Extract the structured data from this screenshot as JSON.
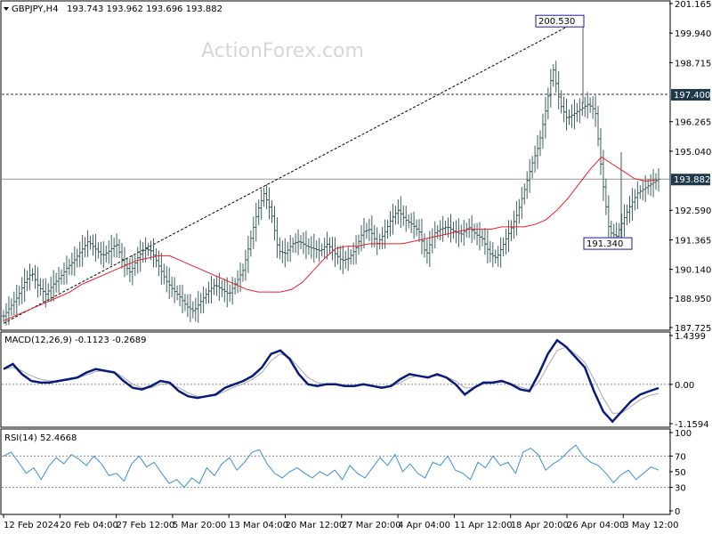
{
  "header": {
    "symbol_label": "GBPJPY,H4",
    "ohlc_label": "193.743 193.962 193.696 193.882"
  },
  "watermark": "ActionForex.com",
  "colors": {
    "background": "#ffffff",
    "price_bars": "#3d5f5f",
    "moving_average": "#e8202a",
    "macd_line": "#0a1a7a",
    "macd_signal": "#a8a8a8",
    "rsi_line": "#3a8fd6",
    "grid_dotted": "#888888",
    "current_price_tag": "#1f3a4a",
    "level_tag_text": "#ffffff",
    "callout_border": "#1a1aa0"
  },
  "chart_data": [
    {
      "type": "line",
      "panel": "price",
      "y_ticks": [
        "201.165",
        "199.940",
        "198.715",
        "197.400",
        "196.265",
        "195.040",
        "193.882",
        "192.590",
        "191.365",
        "190.140",
        "188.950",
        "187.725"
      ],
      "ylim": [
        187.725,
        201.165
      ],
      "x_ticks": [
        "12 Feb 2024",
        "20 Feb 04:00",
        "27 Feb 12:00",
        "5 Mar 20:00",
        "13 Mar 04:00",
        "20 Mar 12:00",
        "27 Mar 20:00",
        "4 Apr 04:00",
        "11 Apr 12:00",
        "18 Apr 20:00",
        "26 Apr 04:00",
        "3 May 12:00"
      ],
      "series": [
        {
          "values": [
            188.2,
            188.6,
            189.0,
            189.6,
            190.0,
            189.4,
            189.1,
            189.5,
            189.8,
            190.2,
            190.5,
            190.9,
            191.3,
            191.0,
            190.7,
            190.9,
            191.2,
            190.4,
            190.0,
            190.6,
            191.0,
            190.9,
            190.3,
            189.7,
            189.3,
            189.0,
            188.6,
            188.4,
            188.8,
            189.2,
            189.5,
            189.3,
            189.1,
            189.6,
            190.1,
            191.3,
            192.5,
            193.3,
            192.5,
            190.9,
            190.8,
            191.2,
            191.3,
            191.1,
            191.0,
            190.9,
            191.2,
            190.8,
            190.5,
            190.6,
            191.0,
            191.7,
            191.8,
            191.2,
            191.6,
            192.2,
            192.6,
            192.2,
            192.0,
            191.7,
            190.7,
            191.6,
            191.8,
            191.9,
            191.7,
            191.6,
            191.9,
            191.6,
            191.4,
            190.8,
            190.6,
            191.2,
            191.8,
            192.5,
            193.5,
            194.5,
            195.3,
            196.8,
            198.5,
            197.0,
            196.4,
            196.6,
            196.8,
            197.0,
            196.7,
            193.9,
            191.7,
            191.5,
            192.2,
            192.8,
            193.3,
            193.5,
            193.7,
            193.88
          ]
        },
        {
          "values": [
            188.0,
            188.2,
            188.4,
            188.6,
            188.8,
            189.0,
            189.2,
            189.5,
            189.7,
            189.9,
            190.1,
            190.3,
            190.5,
            190.6,
            190.7,
            190.7,
            190.5,
            190.3,
            190.1,
            189.9,
            189.7,
            189.5,
            189.3,
            189.2,
            189.2,
            189.2,
            189.3,
            189.6,
            190.1,
            190.6,
            191.0,
            191.1,
            191.1,
            191.2,
            191.2,
            191.2,
            191.2,
            191.3,
            191.4,
            191.5,
            191.6,
            191.7,
            191.8,
            191.8,
            191.8,
            191.9,
            191.9,
            191.9,
            192.0,
            192.2,
            192.6,
            193.1,
            193.7,
            194.3,
            194.8,
            194.5,
            194.2,
            193.9,
            193.8,
            193.85
          ]
        }
      ],
      "levels": [
        "197.400",
        "193.882"
      ],
      "annotations": [
        "200.530",
        "191.340"
      ]
    },
    {
      "type": "line",
      "panel": "macd",
      "label": "MACD(12,26,9) -0.1123 -0.2689",
      "y_ticks": [
        "1.4399",
        "0.00",
        "-1.1594"
      ],
      "ylim": [
        -1.1594,
        1.4399
      ],
      "series": [
        {
          "values": [
            0.45,
            0.6,
            0.3,
            0.1,
            0.05,
            0.05,
            0.1,
            0.15,
            0.2,
            0.35,
            0.45,
            0.4,
            0.35,
            0.1,
            -0.1,
            -0.15,
            -0.05,
            0.1,
            0.05,
            -0.2,
            -0.35,
            -0.4,
            -0.35,
            -0.3,
            -0.1,
            0.0,
            0.1,
            0.25,
            0.5,
            0.9,
            1.0,
            0.75,
            0.3,
            0.0,
            -0.05,
            0.0,
            0.0,
            -0.05,
            -0.05,
            0.0,
            -0.05,
            -0.1,
            -0.05,
            0.15,
            0.3,
            0.25,
            0.2,
            0.3,
            0.2,
            0.0,
            -0.3,
            -0.1,
            0.05,
            0.05,
            0.1,
            0.0,
            -0.15,
            -0.2,
            0.3,
            0.9,
            1.3,
            1.1,
            0.8,
            0.5,
            -0.2,
            -0.8,
            -1.1,
            -0.8,
            -0.5,
            -0.3,
            -0.2,
            -0.11
          ]
        },
        {
          "values": [
            0.45,
            0.5,
            0.4,
            0.25,
            0.15,
            0.1,
            0.1,
            0.12,
            0.18,
            0.28,
            0.38,
            0.4,
            0.38,
            0.2,
            0.0,
            -0.1,
            -0.1,
            0.0,
            0.02,
            -0.1,
            -0.25,
            -0.35,
            -0.37,
            -0.33,
            -0.2,
            -0.08,
            0.02,
            0.15,
            0.35,
            0.7,
            0.9,
            0.8,
            0.5,
            0.2,
            0.05,
            0.0,
            -0.02,
            -0.03,
            -0.04,
            -0.02,
            -0.04,
            -0.07,
            -0.06,
            0.05,
            0.2,
            0.25,
            0.23,
            0.25,
            0.22,
            0.1,
            -0.1,
            -0.1,
            0.0,
            0.03,
            0.07,
            0.03,
            -0.08,
            -0.15,
            0.05,
            0.55,
            1.0,
            1.1,
            0.9,
            0.65,
            0.15,
            -0.4,
            -0.85,
            -0.85,
            -0.65,
            -0.45,
            -0.33,
            -0.27
          ]
        }
      ]
    },
    {
      "type": "line",
      "panel": "rsi",
      "label": "RSI(14) 52.4668",
      "y_ticks": [
        "100",
        "70",
        "50",
        "30",
        "0"
      ],
      "ylim": [
        0,
        100
      ],
      "series": [
        {
          "values": [
            70,
            75,
            62,
            48,
            55,
            40,
            57,
            68,
            60,
            72,
            66,
            58,
            70,
            60,
            45,
            48,
            38,
            60,
            70,
            56,
            62,
            48,
            35,
            40,
            30,
            42,
            35,
            55,
            45,
            60,
            68,
            52,
            62,
            75,
            78,
            60,
            48,
            42,
            50,
            55,
            48,
            42,
            50,
            45,
            52,
            40,
            58,
            48,
            42,
            55,
            68,
            58,
            72,
            50,
            60,
            48,
            42,
            62,
            58,
            70,
            52,
            48,
            40,
            62,
            55,
            70,
            58,
            62,
            48,
            75,
            80,
            72,
            52,
            60,
            66,
            76,
            84,
            70,
            62,
            58,
            48,
            36,
            46,
            52,
            40,
            48,
            56,
            52
          ]
        }
      ]
    }
  ]
}
